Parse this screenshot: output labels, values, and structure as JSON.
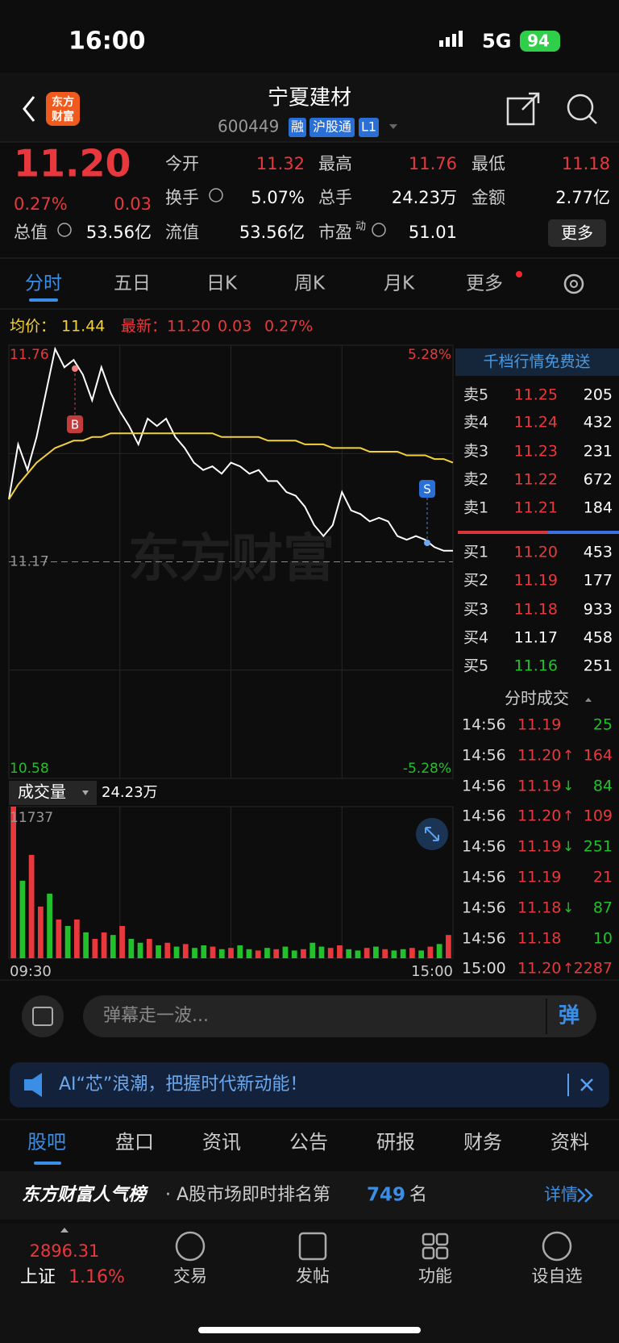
{
  "status": {
    "time": "16:00",
    "network": "5G",
    "battery": "94"
  },
  "header": {
    "logo": [
      "东方",
      "财富"
    ],
    "title": "宁夏建材",
    "code": "600449",
    "tags": [
      "融",
      "沪股通",
      "L1"
    ]
  },
  "quote": {
    "price": "11.20",
    "change_pct": "0.27%",
    "change": "0.03",
    "stats": [
      {
        "label": "今开",
        "value": "11.32"
      },
      {
        "label": "最高",
        "value": "11.76"
      },
      {
        "label": "最低",
        "value": "11.18"
      },
      {
        "label": "换手",
        "value": "5.07%"
      },
      {
        "label": "总手",
        "value": "24.23万"
      },
      {
        "label": "金额",
        "value": "2.77亿"
      },
      {
        "label": "总值",
        "value": "53.56亿"
      },
      {
        "label": "流值",
        "value": "53.56亿"
      },
      {
        "label": "市盈",
        "sup": "动",
        "value": "51.01"
      }
    ],
    "more": "更多"
  },
  "tabs": [
    "分时",
    "五日",
    "日K",
    "周K",
    "月K",
    "更多"
  ],
  "legend": {
    "avg_label": "均价：",
    "avg": "11.44",
    "latest_label": "最新：",
    "latest": "11.20",
    "change": "0.03",
    "change_pct": "0.27%"
  },
  "watermark": "东方财富",
  "chart_data": [
    {
      "type": "line",
      "ylim": [
        10.58,
        11.76
      ],
      "yticks": [
        11.76,
        11.17,
        10.58
      ],
      "y2lim": [
        -5.28,
        5.28
      ],
      "y2ticks": [
        {
          "value": 5.28,
          "label": "5.28%"
        },
        {
          "value": -5.28,
          "label": "-5.28%"
        }
      ],
      "series": [
        {
          "color": "#ffffff",
          "values": [
            11.34,
            11.49,
            11.42,
            11.51,
            11.63,
            11.75,
            11.7,
            11.72,
            11.68,
            11.61,
            11.7,
            11.63,
            11.58,
            11.54,
            11.49,
            11.56,
            11.54,
            11.56,
            11.51,
            11.48,
            11.44,
            11.42,
            11.43,
            11.41,
            11.44,
            11.43,
            11.41,
            11.42,
            11.39,
            11.39,
            11.36,
            11.35,
            11.32,
            11.27,
            11.24,
            11.27,
            11.36,
            11.31,
            11.3,
            11.28,
            11.29,
            11.28,
            11.24,
            11.23,
            11.24,
            11.23,
            11.21,
            11.2,
            11.2
          ]
        },
        {
          "color": "#f2d23c",
          "values": [
            11.34,
            11.38,
            11.41,
            11.44,
            11.46,
            11.48,
            11.49,
            11.5,
            11.5,
            11.51,
            11.51,
            11.52,
            11.52,
            11.52,
            11.52,
            11.52,
            11.52,
            11.52,
            11.52,
            11.52,
            11.52,
            11.52,
            11.52,
            11.51,
            11.51,
            11.51,
            11.51,
            11.51,
            11.5,
            11.5,
            11.5,
            11.5,
            11.49,
            11.49,
            11.49,
            11.48,
            11.48,
            11.48,
            11.48,
            11.47,
            11.47,
            11.47,
            11.47,
            11.46,
            11.46,
            11.46,
            11.45,
            11.45,
            11.44
          ]
        }
      ],
      "annotations": [
        "B",
        "S"
      ]
    },
    {
      "type": "bar",
      "ylim": [
        0,
        11737
      ],
      "yticks": [
        11737
      ],
      "xticks": [
        "09:30",
        "15:00"
      ],
      "values": [
        11737,
        6000,
        8000,
        4000,
        5000,
        3000,
        2500,
        3000,
        2000,
        1500,
        2000,
        1800,
        2500,
        1500,
        1200,
        1500,
        1000,
        1200,
        900,
        1100,
        800,
        1000,
        900,
        700,
        800,
        1000,
        700,
        600,
        800,
        700,
        900,
        600,
        700,
        1200,
        900,
        800,
        1000,
        700,
        600,
        800,
        900,
        700,
        600,
        700,
        800,
        600,
        900,
        1100,
        1800
      ],
      "colors": [
        "#e8383d",
        "#22c02a",
        "#e8383d",
        "#e8383d",
        "#22c02a",
        "#e8383d",
        "#22c02a",
        "#e8383d",
        "#22c02a",
        "#e8383d",
        "#e8383d",
        "#22c02a",
        "#e8383d",
        "#22c02a",
        "#22c02a",
        "#e8383d",
        "#22c02a",
        "#e8383d",
        "#22c02a",
        "#e8383d",
        "#22c02a",
        "#22c02a",
        "#e8383d",
        "#22c02a",
        "#e8383d",
        "#22c02a",
        "#22c02a",
        "#e8383d",
        "#22c02a",
        "#e8383d",
        "#22c02a",
        "#22c02a",
        "#e8383d",
        "#22c02a",
        "#22c02a",
        "#e8383d",
        "#e8383d",
        "#22c02a",
        "#22c02a",
        "#e8383d",
        "#22c02a",
        "#e8383d",
        "#22c02a",
        "#22c02a",
        "#e8383d",
        "#22c02a",
        "#e8383d",
        "#22c02a",
        "#e8383d"
      ]
    }
  ],
  "volume_header": {
    "label": "成交量",
    "total": "24.23万"
  },
  "order_book": {
    "header": "千档行情免费送",
    "asks": [
      {
        "label": "卖5",
        "price": "11.25",
        "volume": "205",
        "color": "#e8383d"
      },
      {
        "label": "卖4",
        "price": "11.24",
        "volume": "432",
        "color": "#e8383d"
      },
      {
        "label": "卖3",
        "price": "11.23",
        "volume": "231",
        "color": "#e8383d"
      },
      {
        "label": "卖2",
        "price": "11.22",
        "volume": "672",
        "color": "#e8383d"
      },
      {
        "label": "卖1",
        "price": "11.21",
        "volume": "184",
        "color": "#e8383d"
      }
    ],
    "bids": [
      {
        "label": "买1",
        "price": "11.20",
        "volume": "453",
        "color": "#e8383d"
      },
      {
        "label": "买2",
        "price": "11.19",
        "volume": "177",
        "color": "#e8383d"
      },
      {
        "label": "买3",
        "price": "11.18",
        "volume": "933",
        "color": "#e8383d"
      },
      {
        "label": "买4",
        "price": "11.17",
        "volume": "458",
        "color": "#ffffff"
      },
      {
        "label": "买5",
        "price": "11.16",
        "volume": "251",
        "color": "#22c02a"
      }
    ]
  },
  "trades": {
    "header": "分时成交",
    "rows": [
      {
        "time": "14:56",
        "price": "11.19",
        "arrow": "",
        "volume": "25",
        "color": "#22c02a"
      },
      {
        "time": "14:56",
        "price": "11.20",
        "arrow": "↑",
        "volume": "164",
        "color": "#e8383d"
      },
      {
        "time": "14:56",
        "price": "11.19",
        "arrow": "↓",
        "volume": "84",
        "color": "#22c02a"
      },
      {
        "time": "14:56",
        "price": "11.20",
        "arrow": "↑",
        "volume": "109",
        "color": "#e8383d"
      },
      {
        "time": "14:56",
        "price": "11.19",
        "arrow": "↓",
        "volume": "251",
        "color": "#22c02a"
      },
      {
        "time": "14:56",
        "price": "11.19",
        "arrow": "",
        "volume": "21",
        "color": "#e8383d"
      },
      {
        "time": "14:56",
        "price": "11.18",
        "arrow": "↓",
        "volume": "87",
        "color": "#22c02a"
      },
      {
        "time": "14:56",
        "price": "11.18",
        "arrow": "",
        "volume": "10",
        "color": "#22c02a"
      },
      {
        "time": "15:00",
        "price": "11.20",
        "arrow": "↑",
        "volume": "2287",
        "color": "#e8383d"
      }
    ]
  },
  "danmaku": {
    "placeholder": "弹幕走一波...",
    "button": "弹"
  },
  "banner": "AI“芯”浪潮，把握时代新动能！",
  "sub_tabs": [
    "股吧",
    "盘口",
    "资讯",
    "公告",
    "研报",
    "财务",
    "资料"
  ],
  "rank": {
    "brand": "东方财富人气榜",
    "text": "· A股市场即时排名第",
    "rank": "749",
    "suffix": "名",
    "link": "详情"
  },
  "bottom_nav": {
    "index_value": "2896.31",
    "index_name": "上证",
    "index_change": "1.16%",
    "items": [
      "交易",
      "发帖",
      "功能",
      "设自选"
    ]
  }
}
